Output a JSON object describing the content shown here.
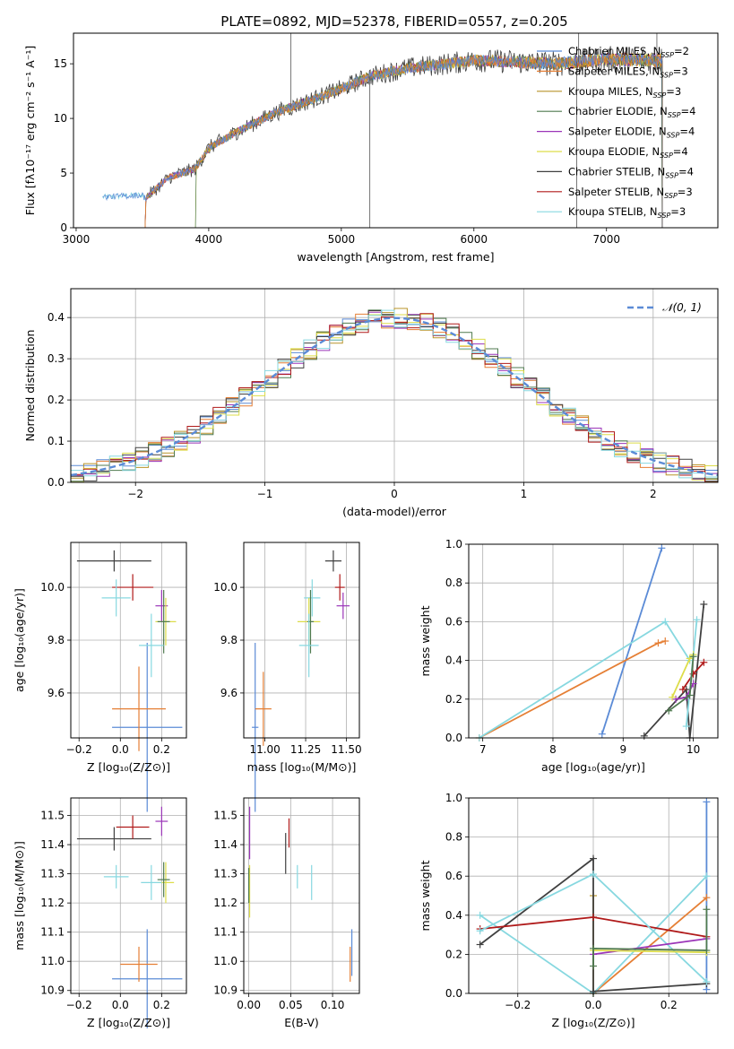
{
  "figure": {
    "title": "PLATE=0892, MJD=52378, FIBERID=0557, z=0.205"
  },
  "models": [
    {
      "name": "Chabrier MILES",
      "nssp": "2",
      "color": "#5b8bd6"
    },
    {
      "name": "Salpeter MILES",
      "nssp": "3",
      "color": "#e57f35"
    },
    {
      "name": "Kroupa MILES",
      "nssp": "3",
      "color": "#b8942a"
    },
    {
      "name": "Chabrier ELODIE",
      "nssp": "4",
      "color": "#4f7a4f"
    },
    {
      "name": "Salpeter ELODIE",
      "nssp": "4",
      "color": "#9b35b8"
    },
    {
      "name": "Kroupa ELODIE",
      "nssp": "4",
      "color": "#dddd4a"
    },
    {
      "name": "Chabrier STELIB",
      "nssp": "4",
      "color": "#404040"
    },
    {
      "name": "Salpeter STELIB",
      "nssp": "3",
      "color": "#b01a1a"
    },
    {
      "name": "Kroupa STELIB",
      "nssp": "3",
      "color": "#87d8e0"
    }
  ],
  "legend_extra": {
    "ssp_prefix": "N",
    "ssp_sub": "SSP",
    "eq": "="
  },
  "chart_data": [
    {
      "id": "spectrum",
      "type": "line",
      "xlabel": "wavelength [Angstrom, rest frame]",
      "ylabel": "Flux [fλ10⁻¹⁷ erg cm⁻² s⁻¹ A⁻¹]",
      "xlim": [
        2980,
        7840
      ],
      "ylim": [
        0,
        17.8
      ],
      "xticks": [
        3000,
        4000,
        5000,
        6000,
        7000
      ],
      "yticks": [
        0,
        5,
        10,
        15
      ],
      "data_start": 3200,
      "data_end": 7420,
      "grid": false,
      "legend": "right",
      "continuum": [
        [
          3200,
          2.8
        ],
        [
          3500,
          3.0
        ],
        [
          3520,
          2.7
        ],
        [
          3700,
          4.6
        ],
        [
          3900,
          5.4
        ],
        [
          4000,
          7.3
        ],
        [
          4200,
          8.7
        ],
        [
          4500,
          10.5
        ],
        [
          4800,
          11.8
        ],
        [
          5000,
          12.7
        ],
        [
          5200,
          13.8
        ],
        [
          5500,
          14.6
        ],
        [
          5800,
          15.0
        ],
        [
          6000,
          15.3
        ],
        [
          6300,
          15.2
        ],
        [
          6600,
          15.0
        ],
        [
          7000,
          15.4
        ],
        [
          7420,
          15.3
        ]
      ]
    },
    {
      "id": "histogram",
      "type": "bar",
      "xlabel": "(data-model)/error",
      "ylabel": "Normed distribution",
      "xlim": [
        -2.5,
        2.5
      ],
      "ylim": [
        0,
        0.47
      ],
      "xticks": [
        -2,
        -1,
        0,
        1,
        2
      ],
      "yticks": [
        0.0,
        0.1,
        0.2,
        0.3,
        0.4
      ],
      "bin_width": 0.1,
      "grid": true,
      "reference": {
        "name": "𝒩(0, 1)",
        "mu": 0,
        "sigma": 1,
        "color": "#5b8bd6"
      }
    },
    {
      "id": "age_vs_Z",
      "type": "scatter",
      "xlabel": "Z [log₁₀(Z/Z⊙)]",
      "ylabel": "age  [log₁₀(age/yr)]",
      "xlim": [
        -0.24,
        0.32
      ],
      "ylim": [
        9.43,
        10.17
      ],
      "xticks": [
        -0.2,
        0.0,
        0.2
      ],
      "xticklabels": [
        "−0.2",
        "0.0",
        "0.2"
      ],
      "yticks": [
        9.6,
        9.8,
        10.0
      ],
      "yticklabels": [
        "9.6",
        "9.8",
        "10.0"
      ],
      "grid": true,
      "points": [
        {
          "m": 0,
          "x": 0.13,
          "y": 9.47,
          "xe": 0.17,
          "ye": 0.32
        },
        {
          "m": 1,
          "x": 0.09,
          "y": 9.54,
          "xe": 0.13,
          "ye": 0.16
        },
        {
          "m": 6,
          "x": -0.03,
          "y": 10.1,
          "xe": 0.18,
          "ye": 0.04
        },
        {
          "m": 7,
          "x": 0.06,
          "y": 10.0,
          "xe": 0.1,
          "ye": 0.05
        },
        {
          "m": 8,
          "x": -0.02,
          "y": 9.96,
          "xe": 0.07,
          "ye": 0.07
        },
        {
          "m": 4,
          "x": 0.2,
          "y": 9.93,
          "xe": 0.03,
          "ye": 0.06
        },
        {
          "m": 5,
          "x": 0.22,
          "y": 9.87,
          "xe": 0.05,
          "ye": 0.09
        },
        {
          "m": 3,
          "x": 0.21,
          "y": 9.87,
          "xe": 0.03,
          "ye": 0.12
        },
        {
          "m": 9,
          "x": 0.15,
          "y": 9.78,
          "xe": 0.06,
          "ye": 0.12
        }
      ]
    },
    {
      "id": "age_vs_mass",
      "type": "scatter",
      "xlabel": "mass [log₁₀(M/M⊙)]",
      "ylabel": "",
      "xlim": [
        10.87,
        11.58
      ],
      "ylim": [
        9.43,
        10.17
      ],
      "xticks": [
        11.0,
        11.25,
        11.5
      ],
      "xticklabels": [
        "11.00",
        "11.25",
        "11.50"
      ],
      "yticks": [
        9.6,
        9.8,
        10.0
      ],
      "yticklabels": [
        "9.6",
        "9.8",
        "10.0"
      ],
      "grid": true,
      "points": [
        {
          "m": 0,
          "x": 10.94,
          "y": 9.47,
          "xe": 0.02,
          "ye": 0.32
        },
        {
          "m": 1,
          "x": 10.99,
          "y": 9.54,
          "xe": 0.05,
          "ye": 0.14
        },
        {
          "m": 6,
          "x": 11.42,
          "y": 10.1,
          "xe": 0.05,
          "ye": 0.04
        },
        {
          "m": 7,
          "x": 11.46,
          "y": 10.0,
          "xe": 0.03,
          "ye": 0.05
        },
        {
          "m": 8,
          "x": 11.29,
          "y": 9.96,
          "xe": 0.05,
          "ye": 0.07
        },
        {
          "m": 4,
          "x": 11.48,
          "y": 9.93,
          "xe": 0.04,
          "ye": 0.05
        },
        {
          "m": 5,
          "x": 11.27,
          "y": 9.87,
          "xe": 0.07,
          "ye": 0.09
        },
        {
          "m": 3,
          "x": 11.28,
          "y": 9.87,
          "xe": 0.02,
          "ye": 0.12
        },
        {
          "m": 9,
          "x": 11.27,
          "y": 9.78,
          "xe": 0.06,
          "ye": 0.12
        }
      ]
    },
    {
      "id": "weight_vs_age",
      "type": "line",
      "xlabel": "age  [log₁₀(age/yr)]",
      "ylabel": "mass weight",
      "xlim": [
        6.8,
        10.35
      ],
      "ylim": [
        0,
        1.0
      ],
      "xticks": [
        7,
        8,
        9,
        10
      ],
      "xticklabels": [
        "7",
        "8",
        "9",
        "10"
      ],
      "yticks": [
        0.0,
        0.2,
        0.4,
        0.6,
        0.8,
        1.0
      ],
      "yticklabels": [
        "0.0",
        "0.2",
        "0.4",
        "0.6",
        "0.8",
        "1.0"
      ],
      "grid": true,
      "series": [
        {
          "m": 0,
          "points": [
            [
              8.7,
              0.02
            ],
            [
              9.55,
              0.98
            ]
          ]
        },
        {
          "m": 1,
          "points": [
            [
              6.95,
              0.0
            ],
            [
              9.5,
              0.49
            ],
            [
              9.6,
              0.5
            ]
          ]
        },
        {
          "m": 9,
          "points": [
            [
              6.95,
              0.0
            ],
            [
              9.6,
              0.6
            ],
            [
              9.95,
              0.4
            ]
          ]
        },
        {
          "m": 6,
          "points": [
            [
              9.3,
              0.01
            ],
            [
              9.9,
              0.25
            ],
            [
              9.95,
              0.0
            ],
            [
              10.15,
              0.69
            ]
          ]
        },
        {
          "m": 7,
          "points": [
            [
              9.85,
              0.25
            ],
            [
              10.0,
              0.33
            ],
            [
              10.15,
              0.39
            ]
          ]
        },
        {
          "m": 8,
          "points": [
            [
              9.9,
              0.06
            ],
            [
              10.05,
              0.61
            ]
          ]
        },
        {
          "m": 4,
          "points": [
            [
              9.75,
              0.2
            ],
            [
              9.9,
              0.21
            ],
            [
              10.0,
              0.28
            ]
          ]
        },
        {
          "m": 5,
          "points": [
            [
              9.7,
              0.21
            ],
            [
              9.95,
              0.41
            ],
            [
              10.0,
              0.43
            ]
          ]
        },
        {
          "m": 3,
          "points": [
            [
              9.65,
              0.14
            ],
            [
              9.95,
              0.22
            ],
            [
              10.0,
              0.42
            ]
          ]
        }
      ]
    },
    {
      "id": "mass_vs_Z",
      "type": "scatter",
      "xlabel": "Z [log₁₀(Z/Z⊙)]",
      "ylabel": "mass [log₁₀(M/M⊙)]",
      "xlim": [
        -0.24,
        0.32
      ],
      "ylim": [
        10.89,
        11.56
      ],
      "xticks": [
        -0.2,
        0.0,
        0.2
      ],
      "xticklabels": [
        "−0.2",
        "0.0",
        "0.2"
      ],
      "yticks": [
        10.9,
        11.0,
        11.1,
        11.2,
        11.3,
        11.4,
        11.5
      ],
      "yticklabels": [
        "10.9",
        "11.0",
        "11.1",
        "11.2",
        "11.3",
        "11.4",
        "11.5"
      ],
      "grid": true,
      "points": [
        {
          "m": 0,
          "x": 0.13,
          "y": 10.94,
          "xe": 0.17,
          "ye": 0.17
        },
        {
          "m": 1,
          "x": 0.09,
          "y": 10.99,
          "xe": 0.09,
          "ye": 0.06
        },
        {
          "m": 6,
          "x": -0.03,
          "y": 11.42,
          "xe": 0.18,
          "ye": 0.04
        },
        {
          "m": 7,
          "x": 0.06,
          "y": 11.46,
          "xe": 0.08,
          "ye": 0.04
        },
        {
          "m": 8,
          "x": -0.02,
          "y": 11.29,
          "xe": 0.06,
          "ye": 0.04
        },
        {
          "m": 4,
          "x": 0.2,
          "y": 11.48,
          "xe": 0.03,
          "ye": 0.05
        },
        {
          "m": 5,
          "x": 0.22,
          "y": 11.27,
          "xe": 0.04,
          "ye": 0.07
        },
        {
          "m": 3,
          "x": 0.21,
          "y": 11.28,
          "xe": 0.03,
          "ye": 0.06
        },
        {
          "m": 9,
          "x": 0.15,
          "y": 11.27,
          "xe": 0.05,
          "ye": 0.06
        }
      ]
    },
    {
      "id": "mass_vs_EBV",
      "type": "scatter",
      "xlabel": "E(B-V)",
      "ylabel": "",
      "xlim": [
        -0.006,
        0.132
      ],
      "ylim": [
        10.89,
        11.56
      ],
      "xticks": [
        0.0,
        0.05,
        0.1
      ],
      "xticklabels": [
        "0.00",
        "0.05",
        "0.10"
      ],
      "yticks": [
        10.9,
        11.0,
        11.1,
        11.2,
        11.3,
        11.4,
        11.5
      ],
      "yticklabels": [
        "10.9",
        "11.0",
        "11.1",
        "11.2",
        "11.3",
        "11.4",
        "11.5"
      ],
      "grid": true,
      "points": [
        {
          "m": 0,
          "x": 0.123,
          "y": 11.03,
          "xe": 0,
          "ye": 0.08
        },
        {
          "m": 1,
          "x": 0.121,
          "y": 10.99,
          "xe": 0,
          "ye": 0.06
        },
        {
          "m": 6,
          "x": 0.044,
          "y": 11.37,
          "xe": 0,
          "ye": 0.07
        },
        {
          "m": 7,
          "x": 0.048,
          "y": 11.44,
          "xe": 0,
          "ye": 0.05
        },
        {
          "m": 8,
          "x": 0.058,
          "y": 11.29,
          "xe": 0,
          "ye": 0.04
        },
        {
          "m": 4,
          "x": 0.001,
          "y": 11.44,
          "xe": 0,
          "ye": 0.09
        },
        {
          "m": 5,
          "x": 0.001,
          "y": 11.24,
          "xe": 0,
          "ye": 0.09
        },
        {
          "m": 3,
          "x": 0.0,
          "y": 11.26,
          "xe": 0,
          "ye": 0.06
        },
        {
          "m": 9,
          "x": 0.075,
          "y": 11.27,
          "xe": 0,
          "ye": 0.06
        }
      ]
    },
    {
      "id": "weight_vs_Z",
      "type": "line",
      "xlabel": "Z [log₁₀(Z/Z⊙)]",
      "ylabel": "mass weight",
      "xlim": [
        -0.33,
        0.33
      ],
      "ylim": [
        0,
        1.0
      ],
      "xticks": [
        -0.2,
        0.0,
        0.2
      ],
      "xticklabels": [
        "−0.2",
        "0.0",
        "0.2"
      ],
      "yticks": [
        0.0,
        0.2,
        0.4,
        0.6,
        0.8,
        1.0
      ],
      "yticklabels": [
        "0.0",
        "0.2",
        "0.4",
        "0.6",
        "0.8",
        "1.0"
      ],
      "grid": true,
      "series": [
        {
          "m": 0,
          "points": [
            [
              0.3,
              0.02
            ],
            [
              0.3,
              0.98
            ]
          ]
        },
        {
          "m": 1,
          "points": [
            [
              0.0,
              0.0
            ],
            [
              0.3,
              0.49
            ]
          ]
        },
        {
          "m": 2,
          "points": [
            [
              0.0,
              0.5
            ],
            [
              0.0,
              0.0
            ]
          ]
        },
        {
          "m": 9,
          "points": [
            [
              -0.3,
              0.4
            ],
            [
              0.0,
              0.0
            ],
            [
              0.3,
              0.6
            ]
          ]
        },
        {
          "m": 6,
          "points": [
            [
              -0.3,
              0.25
            ],
            [
              0.0,
              0.69
            ],
            [
              0.0,
              0.01
            ],
            [
              0.3,
              0.05
            ]
          ]
        },
        {
          "m": 7,
          "points": [
            [
              -0.3,
              0.33
            ],
            [
              0.0,
              0.39
            ],
            [
              0.3,
              0.29
            ]
          ]
        },
        {
          "m": 8,
          "points": [
            [
              -0.3,
              0.32
            ],
            [
              0.0,
              0.61
            ],
            [
              0.3,
              0.06
            ]
          ]
        },
        {
          "m": 4,
          "points": [
            [
              0.0,
              0.2
            ],
            [
              0.3,
              0.28
            ]
          ]
        },
        {
          "m": 5,
          "points": [
            [
              0.0,
              0.22
            ],
            [
              0.3,
              0.21
            ]
          ]
        },
        {
          "m": 3,
          "points": [
            [
              0.0,
              0.14
            ],
            [
              0.0,
              0.23
            ],
            [
              0.3,
              0.22
            ],
            [
              0.3,
              0.43
            ]
          ]
        }
      ]
    }
  ]
}
